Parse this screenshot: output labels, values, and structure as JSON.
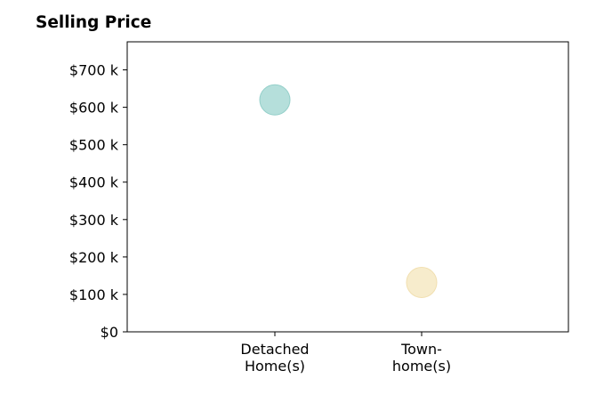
{
  "chart_data": {
    "type": "scatter",
    "title": "Selling Price",
    "xlabel": "",
    "ylabel": "",
    "categories": [
      [
        "Detached",
        "Home(s)"
      ],
      [
        "Town-",
        "home(s)"
      ]
    ],
    "points": [
      {
        "category": 0,
        "value": 620000,
        "color": "#b5dfdb",
        "edge": "#93cfc9"
      },
      {
        "category": 1,
        "value": 132000,
        "color": "#f7eccc",
        "edge": "#f1dfb0"
      }
    ],
    "yticks": [
      0,
      100000,
      200000,
      300000,
      400000,
      500000,
      600000,
      700000
    ],
    "ytick_labels": [
      "$0",
      "$100 k",
      "$200 k",
      "$300 k",
      "$400 k",
      "$500 k",
      "$600 k",
      "$700 k"
    ],
    "ylim": [
      0,
      775000
    ],
    "grid": false,
    "legend": "none"
  }
}
